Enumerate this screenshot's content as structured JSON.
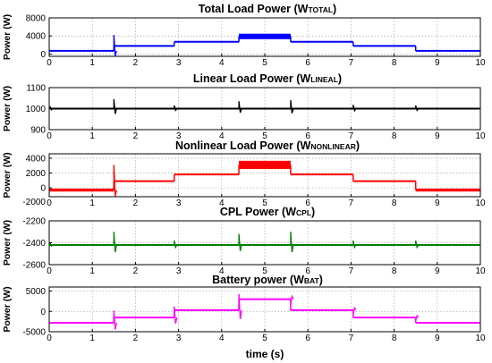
{
  "chart_data": [
    {
      "type": "line",
      "title": "Total Load Power (W",
      "title_sub": "TOTAL",
      "title_end": ")",
      "ylabel": "Power (W)",
      "color": "#0000ff",
      "ylim": [
        -500,
        8000
      ],
      "yticks": [
        0,
        4000,
        8000
      ],
      "xlim": [
        0,
        10
      ],
      "xticks": [
        0,
        1,
        2,
        3,
        4,
        5,
        6,
        7,
        8,
        9,
        10
      ],
      "segments": [
        {
          "x": [
            0,
            1.5
          ],
          "y": 700
        },
        {
          "x": [
            1.5,
            2.9
          ],
          "y": 1800
        },
        {
          "x": [
            2.9,
            4.4
          ],
          "y": 2700
        },
        {
          "x": [
            4.4,
            5.6
          ],
          "y": 3900,
          "ripple": 1200
        },
        {
          "x": [
            5.6,
            7.05
          ],
          "y": 2700
        },
        {
          "x": [
            7.05,
            8.5
          ],
          "y": 1800
        },
        {
          "x": [
            8.5,
            10
          ],
          "y": 700
        }
      ],
      "spikes": [
        {
          "x": 1.5,
          "peak": 4200
        }
      ]
    },
    {
      "type": "line",
      "title": "Linear Load Power (W",
      "title_sub": "LINEAL",
      "title_end": ")",
      "ylabel": "Power (W)",
      "color": "#000000",
      "ylim": [
        900,
        1100
      ],
      "yticks": [
        900,
        1000,
        1100
      ],
      "xlim": [
        0,
        10
      ],
      "xticks": [
        0,
        1,
        2,
        3,
        4,
        5,
        6,
        7,
        8,
        9,
        10
      ],
      "segments": [
        {
          "x": [
            0,
            10
          ],
          "y": 1000
        }
      ],
      "spikes": [
        {
          "x": 0.02,
          "peak": 1010
        },
        {
          "x": 1.5,
          "peak": 1045
        },
        {
          "x": 2.9,
          "peak": 1015
        },
        {
          "x": 4.4,
          "peak": 1035
        },
        {
          "x": 5.6,
          "peak": 1040
        },
        {
          "x": 7.05,
          "peak": 1018
        },
        {
          "x": 8.5,
          "peak": 1015
        }
      ]
    },
    {
      "type": "line",
      "title": "Nonlinear Load Power (W",
      "title_sub": "NONLINEAR",
      "title_end": ")",
      "ylabel": "Power (W)",
      "color": "#ff0000",
      "ylim": [
        -1200,
        4600
      ],
      "yticks": [
        -2000,
        0,
        2000,
        4000
      ],
      "xlim": [
        0,
        10
      ],
      "xticks": [
        0,
        1,
        2,
        3,
        4,
        5,
        6,
        7,
        8,
        9,
        10
      ],
      "segments": [
        {
          "x": [
            0,
            1.5
          ],
          "y": -300,
          "ripple": 400
        },
        {
          "x": [
            1.5,
            2.9
          ],
          "y": 900
        },
        {
          "x": [
            2.9,
            4.4
          ],
          "y": 1800
        },
        {
          "x": [
            4.4,
            5.6
          ],
          "y": 3100,
          "ripple": 1100
        },
        {
          "x": [
            5.6,
            7.05
          ],
          "y": 1800
        },
        {
          "x": [
            7.05,
            8.5
          ],
          "y": 900
        },
        {
          "x": [
            8.5,
            10
          ],
          "y": -300,
          "ripple": 400
        }
      ],
      "spikes": [
        {
          "x": 1.5,
          "peak": 3100
        }
      ]
    },
    {
      "type": "line",
      "title": "CPL Power (W",
      "title_sub": "CPL",
      "title_end": ")",
      "ylabel": "Power (W)",
      "color": "#008000",
      "ylim": [
        -2600,
        -2200
      ],
      "yticks": [
        -2600,
        -2400,
        -2200
      ],
      "xlim": [
        0,
        10
      ],
      "xticks": [
        0,
        1,
        2,
        3,
        4,
        5,
        6,
        7,
        8,
        9,
        10
      ],
      "segments": [
        {
          "x": [
            0,
            10
          ],
          "y": -2420
        }
      ],
      "spikes": [
        {
          "x": 0.02,
          "peak": -2400
        },
        {
          "x": 1.5,
          "peak": -2300
        },
        {
          "x": 2.9,
          "peak": -2380
        },
        {
          "x": 4.4,
          "peak": -2320
        },
        {
          "x": 5.6,
          "peak": -2300
        },
        {
          "x": 7.05,
          "peak": -2380
        },
        {
          "x": 8.5,
          "peak": -2380
        }
      ]
    },
    {
      "type": "line",
      "title": "Battery power (W",
      "title_sub": "BAT",
      "title_end": ")",
      "ylabel": "Power (W)",
      "color": "#ff00ff",
      "ylim": [
        -5000,
        6000
      ],
      "yticks": [
        -5000,
        0,
        5000
      ],
      "xlim": [
        0,
        10
      ],
      "xticks": [
        0,
        1,
        2,
        3,
        4,
        5,
        6,
        7,
        8,
        9,
        10
      ],
      "xlabel": "time (s)",
      "segments": [
        {
          "x": [
            0,
            1.5
          ],
          "y": -2800
        },
        {
          "x": [
            1.5,
            2.9
          ],
          "y": -1500
        },
        {
          "x": [
            2.9,
            4.4
          ],
          "y": 300
        },
        {
          "x": [
            4.4,
            5.6
          ],
          "y": 3000
        },
        {
          "x": [
            5.6,
            7.05
          ],
          "y": 300
        },
        {
          "x": [
            7.05,
            8.5
          ],
          "y": -1500
        },
        {
          "x": [
            8.5,
            10
          ],
          "y": -2800
        }
      ],
      "spikes": [
        {
          "x": 1.5,
          "peak": 200
        },
        {
          "x": 2.9,
          "peak": 1200
        },
        {
          "x": 4.4,
          "peak": 4300
        },
        {
          "x": 5.6,
          "peak": 1700
        },
        {
          "x": 7.05,
          "peak": -700
        },
        {
          "x": 8.5,
          "peak": -2300
        }
      ]
    }
  ]
}
